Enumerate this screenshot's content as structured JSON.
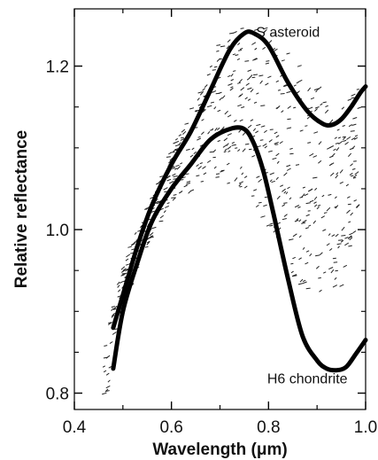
{
  "chart_data": {
    "type": "line",
    "xlabel": "Wavelength (μm)",
    "ylabel": "Relative reflectance",
    "xlim": [
      0.4,
      1.0
    ],
    "ylim": [
      0.78,
      1.27
    ],
    "xticks": [
      0.4,
      0.6,
      0.8,
      1.0
    ],
    "xtick_labels": [
      "0.4",
      "0.6",
      "0.8",
      "1.0"
    ],
    "yticks": [
      0.8,
      1.0,
      1.2
    ],
    "ytick_labels": [
      "0.8",
      "1.0",
      "1.2"
    ],
    "grid": false,
    "legend": "none",
    "series": [
      {
        "name": "S asteroid",
        "style": "thick-solid",
        "label_x": 0.84,
        "label_y": 1.236,
        "x": [
          0.48,
          0.5,
          0.53,
          0.56,
          0.6,
          0.64,
          0.68,
          0.72,
          0.75,
          0.77,
          0.8,
          0.84,
          0.88,
          0.91,
          0.93,
          0.95,
          0.97,
          0.99,
          1.0
        ],
        "y": [
          0.88,
          0.92,
          0.98,
          1.03,
          1.08,
          1.12,
          1.17,
          1.22,
          1.24,
          1.24,
          1.225,
          1.18,
          1.145,
          1.13,
          1.128,
          1.135,
          1.15,
          1.168,
          1.175
        ]
      },
      {
        "name": "H6 chondrite",
        "style": "thick-solid",
        "label_x": 0.88,
        "label_y": 0.812,
        "x": [
          0.48,
          0.5,
          0.53,
          0.56,
          0.6,
          0.64,
          0.68,
          0.72,
          0.75,
          0.77,
          0.79,
          0.81,
          0.84,
          0.87,
          0.9,
          0.92,
          0.94,
          0.96,
          0.98,
          1.0
        ],
        "y": [
          0.83,
          0.9,
          0.96,
          1.01,
          1.05,
          1.08,
          1.11,
          1.123,
          1.123,
          1.105,
          1.07,
          1.02,
          0.94,
          0.87,
          0.84,
          0.83,
          0.828,
          0.832,
          0.848,
          0.865
        ]
      }
    ],
    "scatter": {
      "name": "",
      "style": "small-dashes",
      "count": 650,
      "x_range": [
        0.46,
        0.99
      ],
      "x_min": [
        0.44,
        0.47,
        0.5,
        0.55,
        0.6,
        0.65,
        0.7,
        0.75,
        0.8,
        0.85,
        0.9,
        0.95,
        0.99
      ],
      "y_low": [
        0.78,
        0.8,
        0.9,
        0.98,
        1.03,
        1.05,
        1.06,
        1.05,
        1.0,
        0.94,
        0.91,
        0.91,
        1.03
      ],
      "y_high": [
        0.84,
        0.89,
        0.96,
        1.03,
        1.1,
        1.17,
        1.23,
        1.255,
        1.25,
        1.21,
        1.18,
        1.16,
        1.18
      ]
    }
  }
}
